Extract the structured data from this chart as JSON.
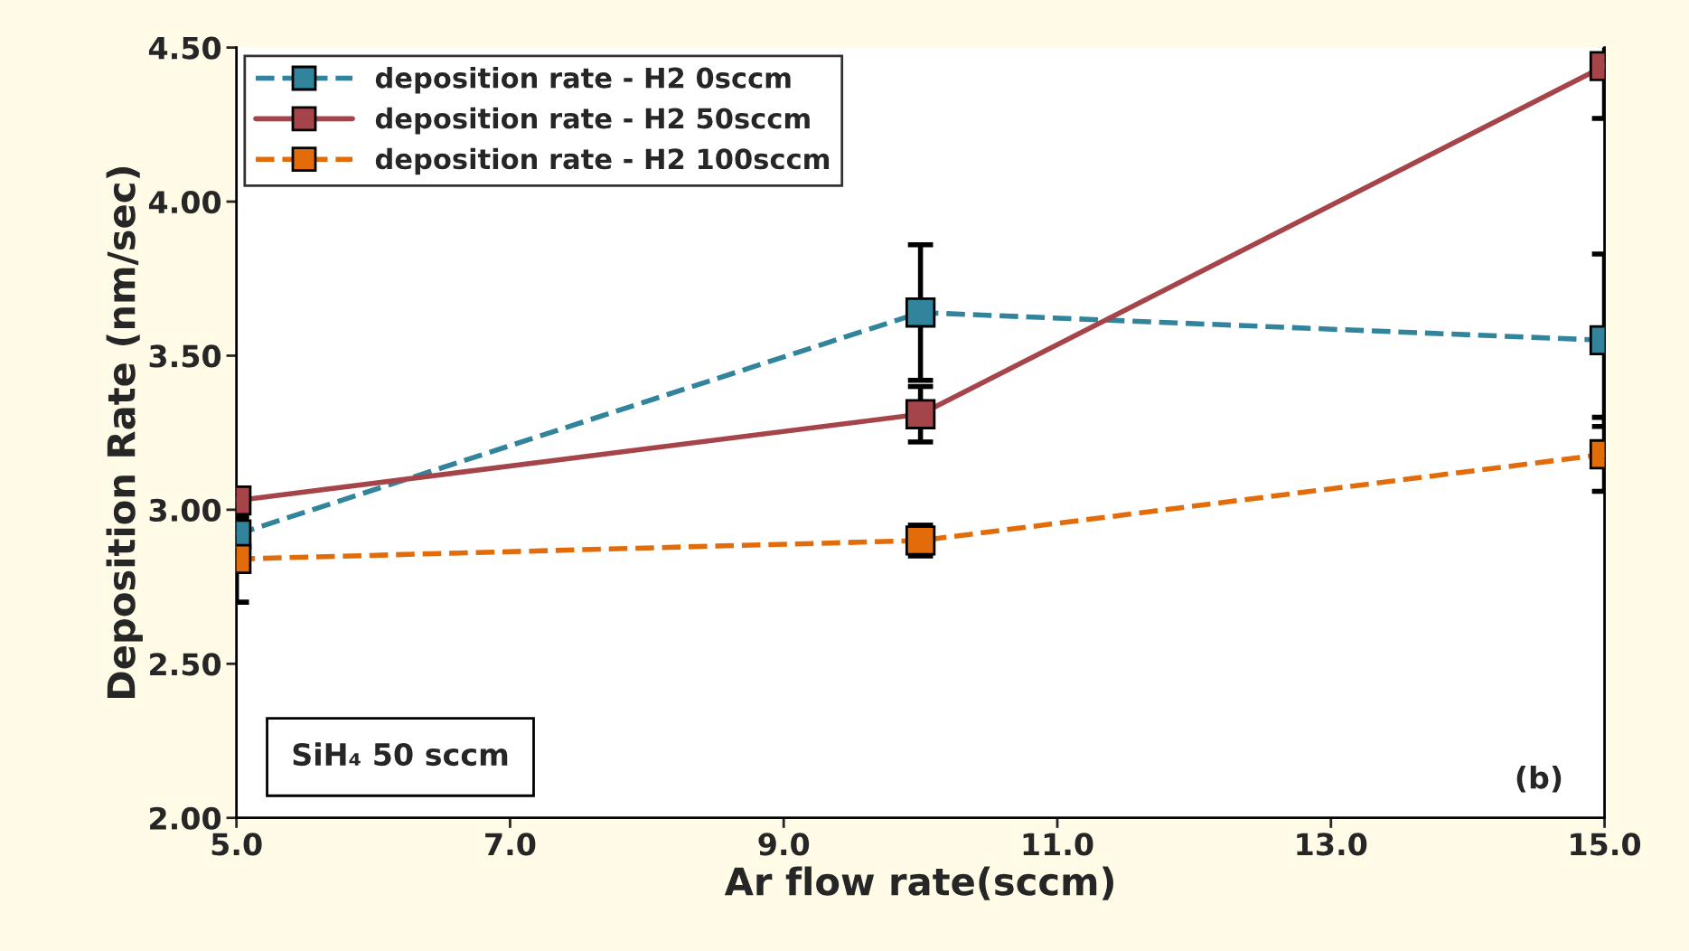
{
  "chart_data": {
    "type": "line",
    "xlabel": "Ar flow rate(sccm)",
    "ylabel": "Deposition Rate (nm/sec)",
    "x": [
      5.0,
      10.0,
      15.0
    ],
    "series": [
      {
        "name": "deposition rate - H2 0sccm",
        "color": "#31849b",
        "values": [
          2.92,
          3.64,
          3.55
        ],
        "errors": [
          0.05,
          0.22,
          0.28
        ],
        "line_style": "dashed",
        "marker": "square"
      },
      {
        "name": "deposition rate - H2 50sccm",
        "color": "#a5454a",
        "values": [
          3.03,
          3.31,
          4.44
        ],
        "errors": [
          null,
          0.09,
          0.17
        ],
        "line_style": "solid",
        "marker": "square"
      },
      {
        "name": "deposition rate - H2 100sccm",
        "color": "#e36c0a",
        "values": [
          2.84,
          2.9,
          3.18
        ],
        "errors": [
          0.14,
          0.05,
          0.12
        ],
        "line_style": "dashed",
        "marker": "square"
      }
    ],
    "xlim": [
      5.0,
      15.0
    ],
    "ylim": [
      2.0,
      4.5
    ],
    "xticks": [
      {
        "value": 5,
        "label": "5.0"
      },
      {
        "value": 7,
        "label": "7.0"
      },
      {
        "value": 9,
        "label": "9.0"
      },
      {
        "value": 11,
        "label": "11.0"
      },
      {
        "value": 13,
        "label": "13.0"
      },
      {
        "value": 15,
        "label": "15.0"
      }
    ],
    "yticks": [
      {
        "value": 2,
        "label": "2.00"
      },
      {
        "value": 2.5,
        "label": "2.50"
      },
      {
        "value": 3,
        "label": "3.00"
      },
      {
        "value": 3.5,
        "label": "3.50"
      },
      {
        "value": 4,
        "label": "4.00"
      },
      {
        "value": 4.5,
        "label": "4.50"
      }
    ],
    "grid": false,
    "legend": "top left",
    "annotations": [
      "SiH₄ 50 sccm",
      "(b)"
    ]
  }
}
